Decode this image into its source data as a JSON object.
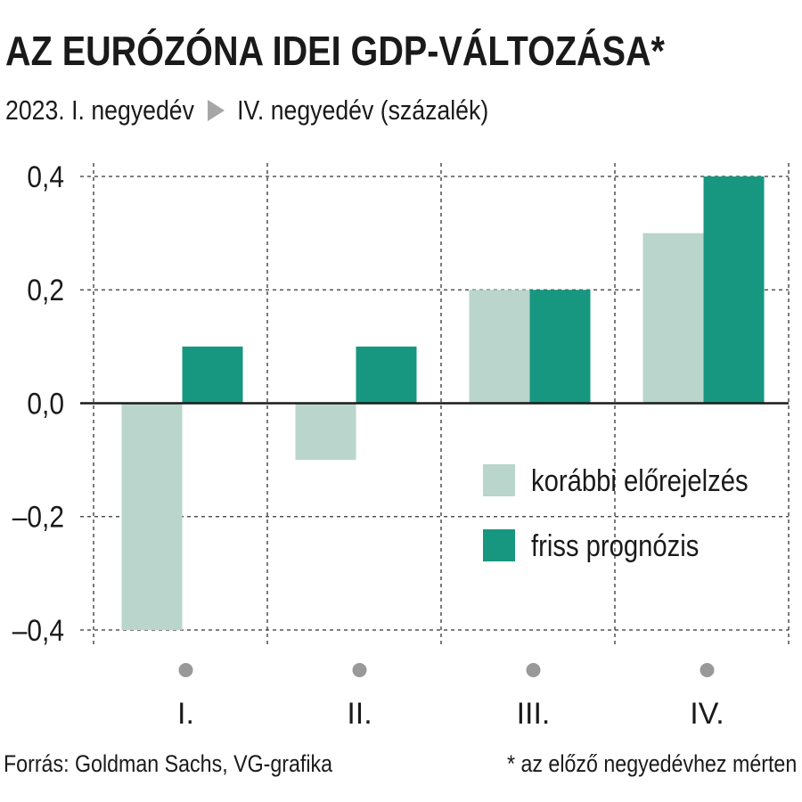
{
  "title": "AZ EURÓZÓNA IDEI GDP-VÁLTOZÁSA*",
  "subtitle": {
    "start": "2023. I. negyedév",
    "end": "IV. negyedév (százalék)"
  },
  "footer": {
    "source": "Forrás: Goldman Sachs, VG-grafika",
    "note": "* az előző negyedévhez mérten"
  },
  "colors": {
    "previous": "#b9d5cc",
    "fresh": "#17977f",
    "marker": "#999999",
    "arrow": "#a6a6a6"
  },
  "chart_data": {
    "type": "bar",
    "categories": [
      "I.",
      "II.",
      "III.",
      "IV."
    ],
    "series": [
      {
        "name": "korábbi előrejelzés",
        "values": [
          -0.4,
          -0.1,
          0.2,
          0.3
        ]
      },
      {
        "name": "friss prognózis",
        "values": [
          0.1,
          0.1,
          0.2,
          0.4
        ]
      }
    ],
    "ylim": [
      -0.4,
      0.4
    ],
    "yticks": [
      0.4,
      0.2,
      0.0,
      -0.2,
      -0.4
    ],
    "ytick_labels": [
      "0,4",
      "0,2",
      "0,0",
      "–0,2",
      "–0,4"
    ],
    "grid": true,
    "legend_position": "right"
  }
}
